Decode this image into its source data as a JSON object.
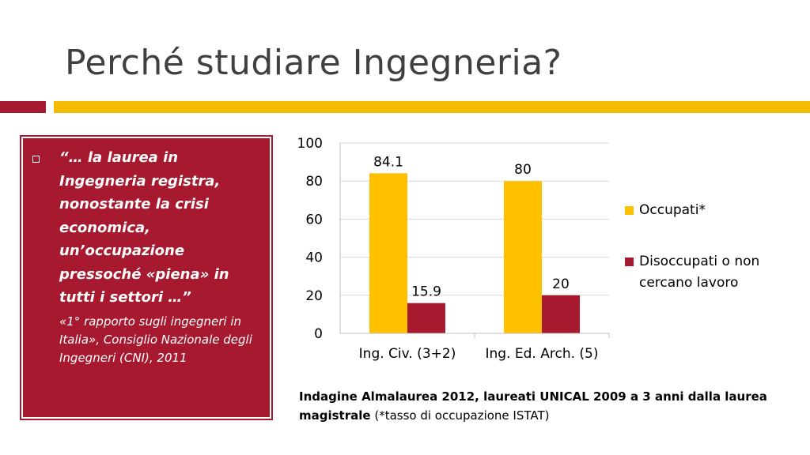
{
  "slide": {
    "title": "Perché studiare Ingegneria?"
  },
  "quote": {
    "text": "“… la laurea in Ingegneria registra, nonostante la crisi economica, un’occupazione pressoché «piena» in tutti i settori …”",
    "source": "«1° rapporto sugli ingegneri in Italia», Consiglio Nazionale degli Ingegneri (CNI), 2011"
  },
  "caption": {
    "bold": "Indagine Almalaurea 2012, laureati UNICAL 2009 a 3 anni dalla laurea magistrale",
    "normal": " (*tasso di occupazione ISTAT)"
  },
  "colors": {
    "accent_red": "#a6192e",
    "accent_gold": "#f5bb00"
  },
  "chart_data": {
    "type": "bar",
    "categories": [
      "Ing. Civ. (3+2)",
      "Ing. Ed. Arch. (5)"
    ],
    "series": [
      {
        "name": "Occupati*",
        "values": [
          84.1,
          80
        ],
        "color": "#ffc000"
      },
      {
        "name": "Disoccupati o non cercano lavoro",
        "values": [
          15.9,
          20
        ],
        "color": "#a6192e"
      }
    ],
    "ylim": [
      0,
      100
    ],
    "yticks": [
      0,
      20,
      40,
      60,
      80,
      100
    ],
    "grid": true,
    "legend": "right"
  }
}
